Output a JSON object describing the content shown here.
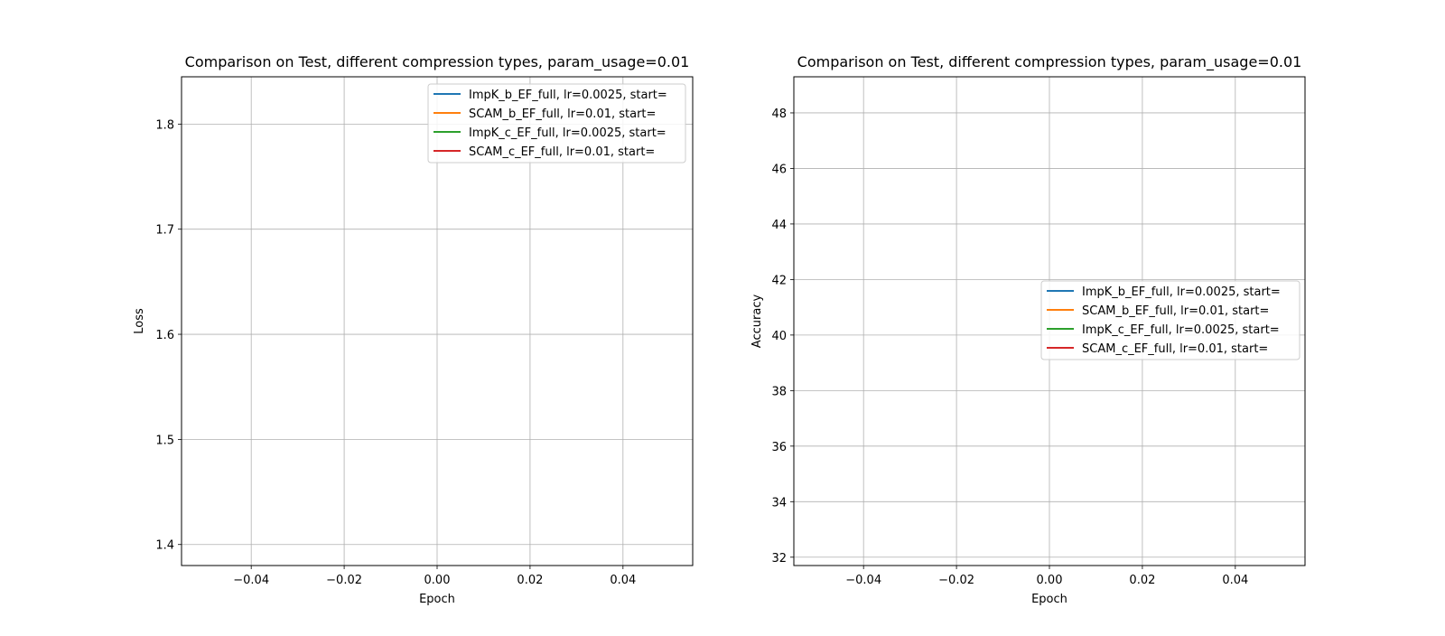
{
  "chart_data": [
    {
      "type": "line",
      "title": "Comparison on Test, different compression types, param_usage=0.01",
      "xlabel": "Epoch",
      "ylabel": "Loss",
      "xlim": [
        -0.055,
        0.055
      ],
      "ylim": [
        1.38,
        1.845
      ],
      "x_ticks": [
        "−0.04",
        "−0.02",
        "0.00",
        "0.02",
        "0.04"
      ],
      "x_tick_values": [
        -0.04,
        -0.02,
        0.0,
        0.02,
        0.04
      ],
      "y_ticks": [
        "1.4",
        "1.5",
        "1.6",
        "1.7",
        "1.8"
      ],
      "y_tick_values": [
        1.4,
        1.5,
        1.6,
        1.7,
        1.8
      ],
      "grid": true,
      "legend_position": "top-right",
      "series": [
        {
          "name": "ImpK_b_EF_full, lr=0.0025, start=",
          "color": "#1f77b4",
          "x": [],
          "y": []
        },
        {
          "name": "SCAM_b_EF_full, lr=0.01, start=",
          "color": "#ff7f0e",
          "x": [],
          "y": []
        },
        {
          "name": "ImpK_c_EF_full, lr=0.0025, start=",
          "color": "#2ca02c",
          "x": [],
          "y": []
        },
        {
          "name": "SCAM_c_EF_full, lr=0.01, start=",
          "color": "#d62728",
          "x": [],
          "y": []
        }
      ]
    },
    {
      "type": "line",
      "title": "Comparison on Test, different compression types, param_usage=0.01",
      "xlabel": "Epoch",
      "ylabel": "Accuracy",
      "xlim": [
        -0.055,
        0.055
      ],
      "ylim": [
        31.7,
        49.3
      ],
      "x_ticks": [
        "−0.04",
        "−0.02",
        "0.00",
        "0.02",
        "0.04"
      ],
      "x_tick_values": [
        -0.04,
        -0.02,
        0.0,
        0.02,
        0.04
      ],
      "y_ticks": [
        "32",
        "34",
        "36",
        "38",
        "40",
        "42",
        "44",
        "46",
        "48"
      ],
      "y_tick_values": [
        32,
        34,
        36,
        38,
        40,
        42,
        44,
        46,
        48
      ],
      "grid": true,
      "legend_position": "center-right",
      "series": [
        {
          "name": "ImpK_b_EF_full, lr=0.0025, start=",
          "color": "#1f77b4",
          "x": [],
          "y": []
        },
        {
          "name": "SCAM_b_EF_full, lr=0.01, start=",
          "color": "#ff7f0e",
          "x": [],
          "y": []
        },
        {
          "name": "ImpK_c_EF_full, lr=0.0025, start=",
          "color": "#2ca02c",
          "x": [],
          "y": []
        },
        {
          "name": "SCAM_c_EF_full, lr=0.01, start=",
          "color": "#d62728",
          "x": [],
          "y": []
        }
      ]
    }
  ]
}
